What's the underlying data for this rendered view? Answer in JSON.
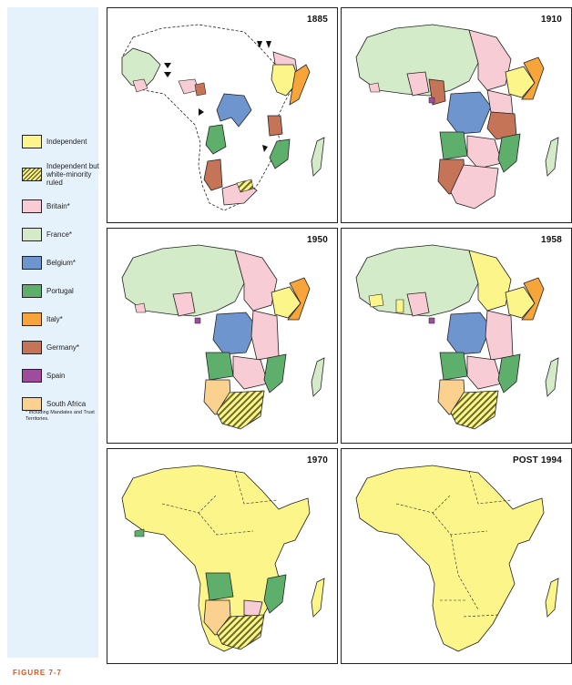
{
  "legend": [
    {
      "label": "Independent",
      "color": "#fcf68a",
      "pattern": "none"
    },
    {
      "label": "Independent but white-minority ruled",
      "color": "#fcf68a",
      "pattern": "hatch"
    },
    {
      "label": "Britain*",
      "color": "#f8ccd4",
      "pattern": "none"
    },
    {
      "label": "France*",
      "color": "#d4ebc9",
      "pattern": "none"
    },
    {
      "label": "Belgium*",
      "color": "#6f95cf",
      "pattern": "none"
    },
    {
      "label": "Portugal",
      "color": "#5daf6b",
      "pattern": "none"
    },
    {
      "label": "Italy*",
      "color": "#f7a53a",
      "pattern": "none"
    },
    {
      "label": "Germany*",
      "color": "#c57458",
      "pattern": "none"
    },
    {
      "label": "Spain",
      "color": "#a04c9c",
      "pattern": "none"
    },
    {
      "label": "South Africa",
      "color": "#fbd18f",
      "pattern": "none"
    }
  ],
  "legend_note": "* Including Mandates and Trust Territories.",
  "panels": [
    {
      "year": "1885"
    },
    {
      "year": "1910"
    },
    {
      "year": "1950"
    },
    {
      "year": "1958"
    },
    {
      "year": "1970"
    },
    {
      "year": "POST 1994"
    }
  ],
  "figure_label": "FIGURE 7-7"
}
